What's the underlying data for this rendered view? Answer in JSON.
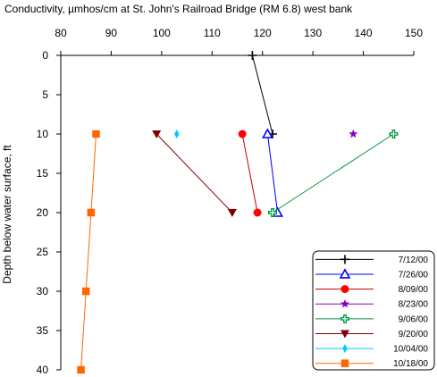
{
  "chart_data": {
    "type": "line",
    "title": "Conductivity, µmhos/cm at St. John's Railroad Bridge (RM 6.8) west bank",
    "xlabel": "",
    "ylabel": "Depth below water surface, ft",
    "xlim": [
      80,
      150
    ],
    "ylim": [
      0,
      40
    ],
    "y_inverted": true,
    "x_axis_position": "top",
    "x_ticks": [
      "80",
      "90",
      "100",
      "110",
      "120",
      "130",
      "140",
      "150"
    ],
    "y_ticks": [
      "0",
      "5",
      "10",
      "15",
      "20",
      "25",
      "30",
      "35",
      "40"
    ],
    "grid": false,
    "legend_position": "bottom-right",
    "series": [
      {
        "name": "7/12/00",
        "marker": "plus",
        "color": "#000000",
        "points": [
          [
            118,
            0
          ],
          [
            122,
            10
          ]
        ]
      },
      {
        "name": "7/26/00",
        "marker": "triangle-open",
        "color": "#0000ff",
        "points": [
          [
            121,
            10
          ],
          [
            123,
            20
          ]
        ]
      },
      {
        "name": "8/09/00",
        "marker": "circle",
        "color": "#ff0000",
        "line_color": "#c00000",
        "points": [
          [
            116,
            10
          ],
          [
            119,
            20
          ]
        ]
      },
      {
        "name": "8/23/00",
        "marker": "star",
        "color": "#8800bb",
        "points": [
          [
            138,
            10
          ]
        ]
      },
      {
        "name": "9/06/00",
        "marker": "cross-open",
        "color": "#009944",
        "points": [
          [
            146,
            10
          ],
          [
            122,
            20
          ]
        ]
      },
      {
        "name": "9/20/00",
        "marker": "triangle-down",
        "color": "#800000",
        "points": [
          [
            99,
            10
          ],
          [
            114,
            20
          ]
        ]
      },
      {
        "name": "10/04/00",
        "marker": "diamond",
        "color": "#00ccff",
        "points": [
          [
            103,
            10
          ]
        ]
      },
      {
        "name": "10/18/00",
        "marker": "square",
        "color": "#ff6600",
        "line_color": "#ff6600",
        "points": [
          [
            87,
            10
          ],
          [
            86,
            20
          ],
          [
            85,
            30
          ],
          [
            84,
            40
          ]
        ]
      }
    ]
  }
}
